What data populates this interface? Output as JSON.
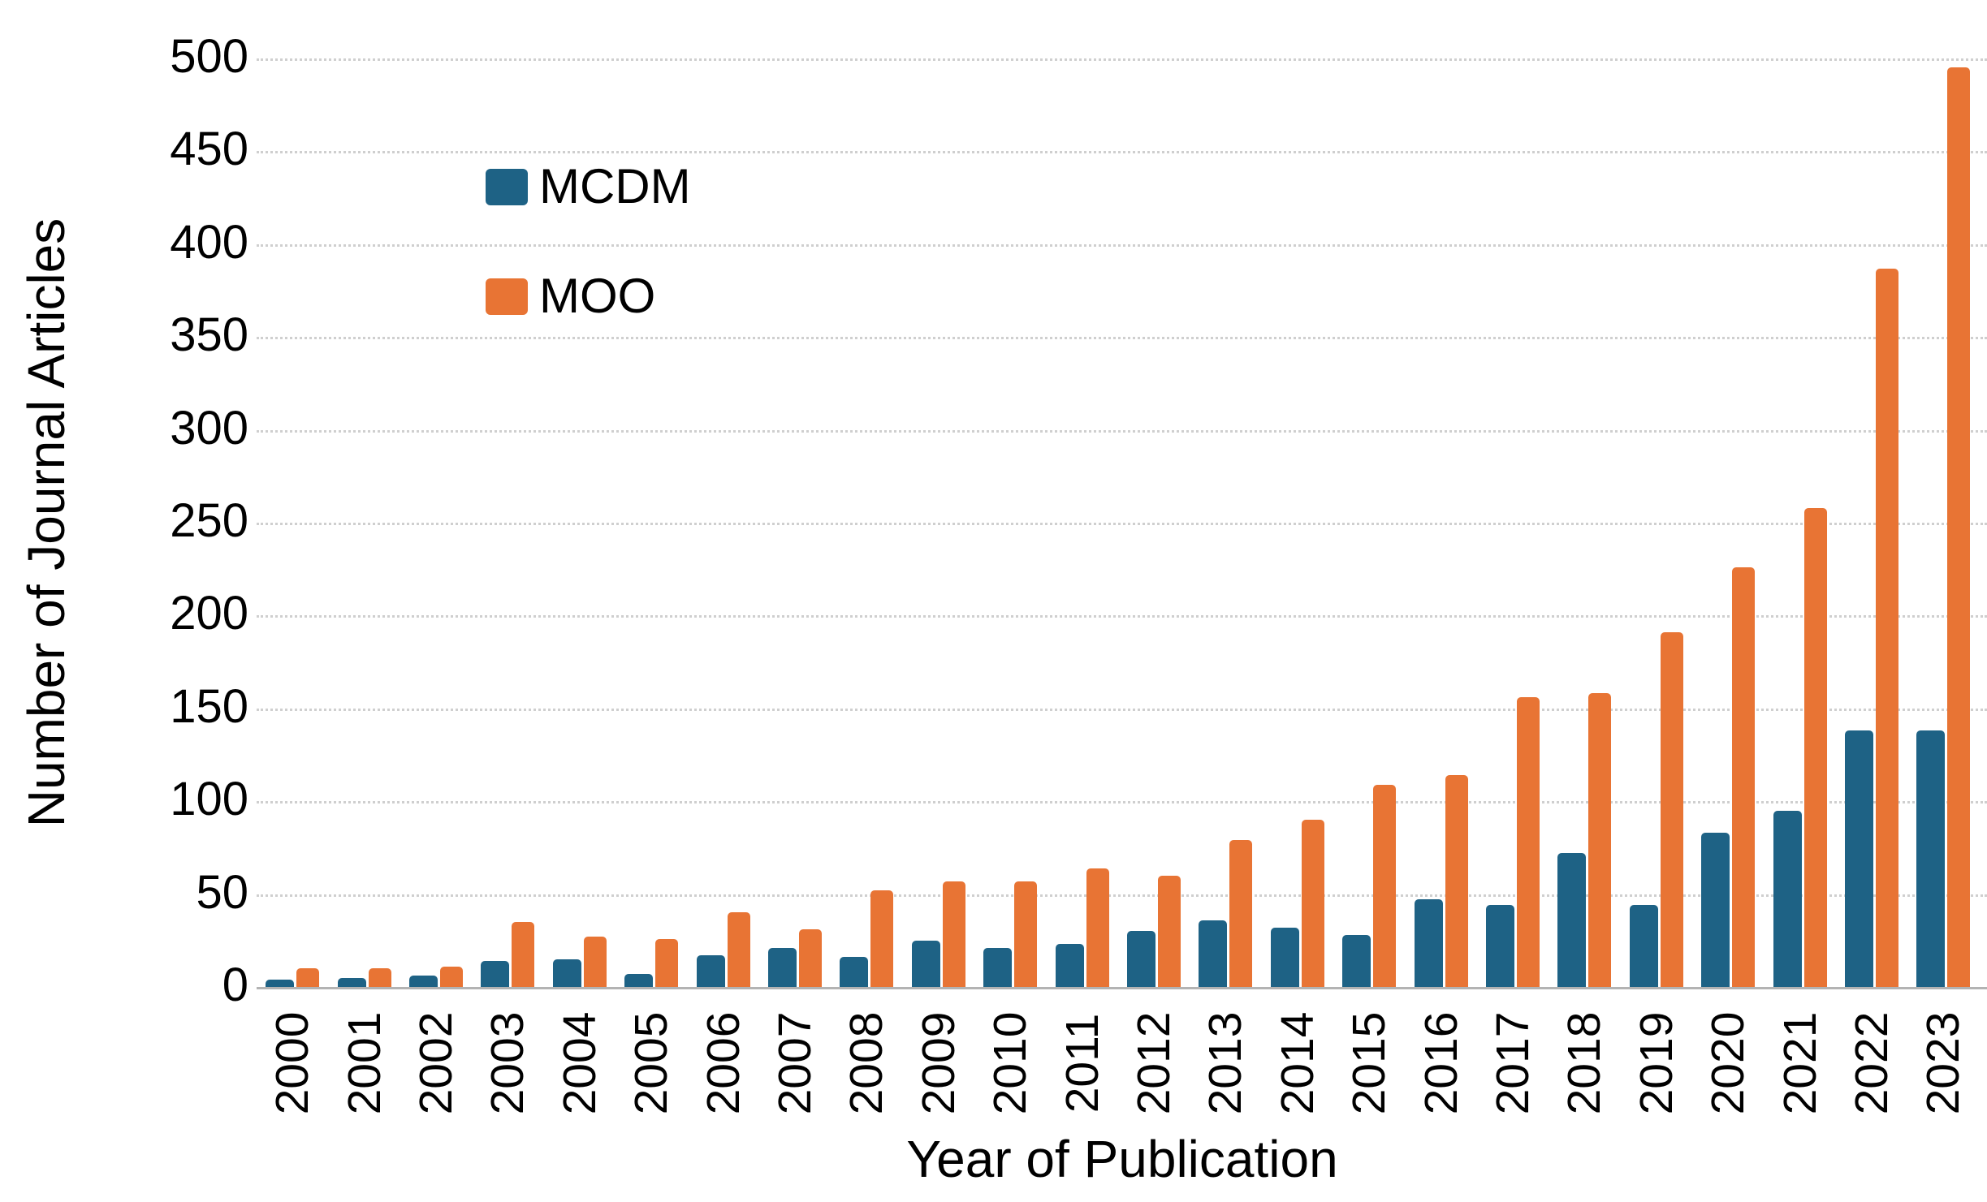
{
  "chart_data": {
    "type": "bar",
    "title": "",
    "xlabel": "Year of Publication",
    "ylabel": "Number of Journal Articles",
    "categories": [
      "2000",
      "2001",
      "2002",
      "2003",
      "2004",
      "2005",
      "2006",
      "2007",
      "2008",
      "2009",
      "2010",
      "2011",
      "2012",
      "2013",
      "2014",
      "2015",
      "2016",
      "2017",
      "2018",
      "2019",
      "2020",
      "2021",
      "2022",
      "2023"
    ],
    "series": [
      {
        "name": "MCDM",
        "color": "#1E6285",
        "values": [
          4,
          5,
          6,
          14,
          15,
          7,
          17,
          21,
          16,
          25,
          21,
          23,
          30,
          36,
          32,
          28,
          47,
          44,
          72,
          44,
          83,
          95,
          138,
          138
        ]
      },
      {
        "name": "MOO",
        "color": "#E87434",
        "values": [
          10,
          10,
          11,
          35,
          27,
          26,
          40,
          31,
          52,
          57,
          57,
          64,
          60,
          79,
          90,
          109,
          114,
          156,
          158,
          191,
          226,
          258,
          387,
          495
        ]
      }
    ],
    "ylim": [
      0,
      500
    ],
    "yticks": [
      0,
      50,
      100,
      150,
      200,
      250,
      300,
      350,
      400,
      450,
      500
    ],
    "grid": "horizontal-dotted",
    "legend_position": "upper-left-inside",
    "gridline_color": "#cfcfcf",
    "text_color": "#000000"
  }
}
